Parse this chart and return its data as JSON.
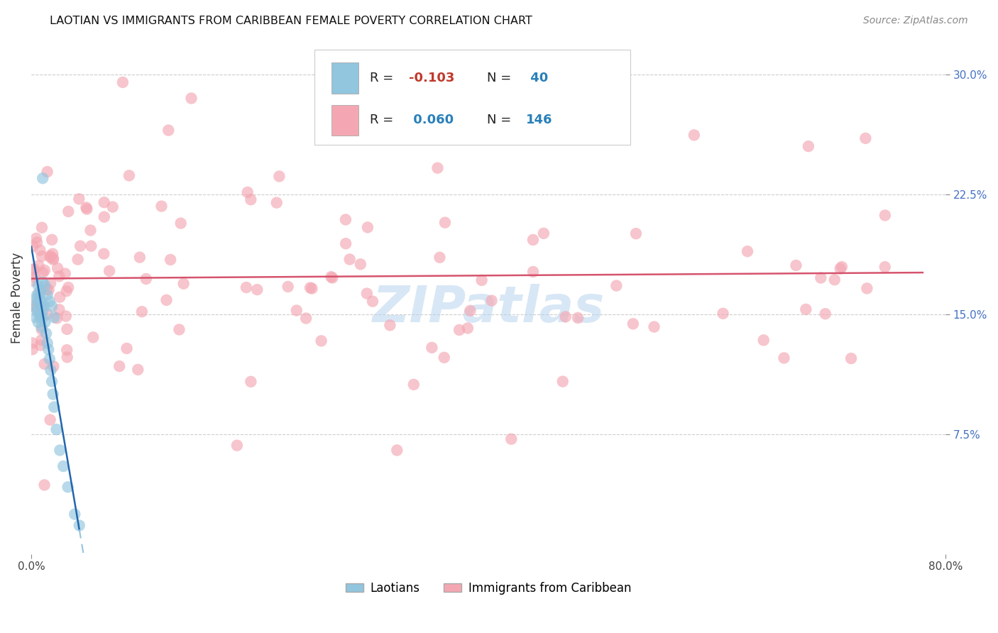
{
  "title": "LAOTIAN VS IMMIGRANTS FROM CARIBBEAN FEMALE POVERTY CORRELATION CHART",
  "source": "Source: ZipAtlas.com",
  "ylabel_label": "Female Poverty",
  "legend_label1": "Laotians",
  "legend_label2": "Immigrants from Caribbean",
  "R1": "-0.103",
  "N1": "40",
  "R2": "0.060",
  "N2": "146",
  "blue_color": "#92c5de",
  "pink_color": "#f4a7b2",
  "blue_line_color": "#2166ac",
  "pink_line_color": "#d6536d",
  "blue_dashed_color": "#92c5de",
  "background_color": "#ffffff",
  "grid_color": "#cccccc",
  "xlim": [
    0.0,
    0.8
  ],
  "ylim": [
    0.0,
    0.32
  ],
  "ytick_vals": [
    0.075,
    0.15,
    0.225,
    0.3
  ],
  "ytick_labels": [
    "7.5%",
    "15.0%",
    "22.5%",
    "30.0%"
  ],
  "xtick_vals": [
    0.0,
    0.8
  ],
  "xtick_labels": [
    "0.0%",
    "80.0%"
  ],
  "watermark": "ZIPatlas",
  "seed": 1234
}
